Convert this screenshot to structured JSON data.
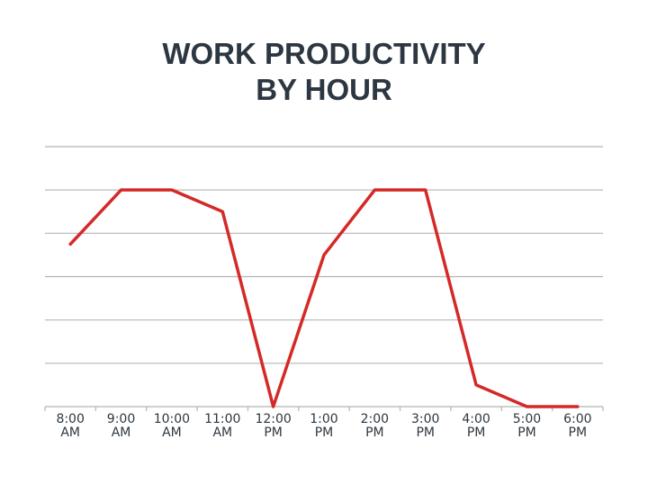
{
  "chart_data": {
    "type": "line",
    "title": "WORK PRODUCTIVITY\nBY HOUR",
    "categories": [
      "8:00\nAM",
      "9:00\nAM",
      "10:00\nAM",
      "11:00\nAM",
      "12:00\nPM",
      "1:00\nPM",
      "2:00\nPM",
      "3:00\nPM",
      "4:00\nPM",
      "5:00\nPM",
      "6:00\nPM"
    ],
    "values": [
      3.75,
      5,
      5,
      4.5,
      0,
      3.5,
      5,
      5,
      0.5,
      0,
      0
    ],
    "color": "#d42a27",
    "ylim": [
      0,
      6
    ],
    "yticks": [
      0,
      1,
      2,
      3,
      4,
      5,
      6
    ],
    "grid": true
  }
}
